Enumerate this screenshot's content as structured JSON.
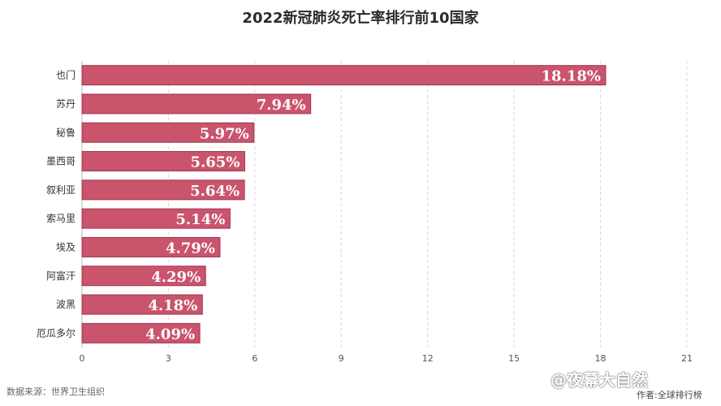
{
  "chart_data": {
    "type": "bar",
    "orientation": "horizontal",
    "title": "2022新冠肺炎死亡率排行前10国家",
    "categories": [
      "也门",
      "苏丹",
      "秘鲁",
      "墨西哥",
      "叙利亚",
      "索马里",
      "埃及",
      "阿富汗",
      "波黑",
      "厄瓜多尔"
    ],
    "values": [
      18.18,
      7.94,
      5.97,
      5.65,
      5.64,
      5.14,
      4.79,
      4.29,
      4.18,
      4.09
    ],
    "value_labels": [
      "18.18%",
      "7.94%",
      "5.97%",
      "5.65%",
      "5.64%",
      "5.14%",
      "4.79%",
      "4.29%",
      "4.18%",
      "4.09%"
    ],
    "xlim": [
      0,
      21
    ],
    "xticks": [
      0,
      3,
      6,
      9,
      12,
      15,
      18,
      21
    ],
    "grid": true,
    "bar_color": "#c9546c"
  },
  "footer": {
    "source": "数据来源：世界卫生组织",
    "watermark": "@夜幕大自然",
    "author": "作者:全球排行榜"
  }
}
